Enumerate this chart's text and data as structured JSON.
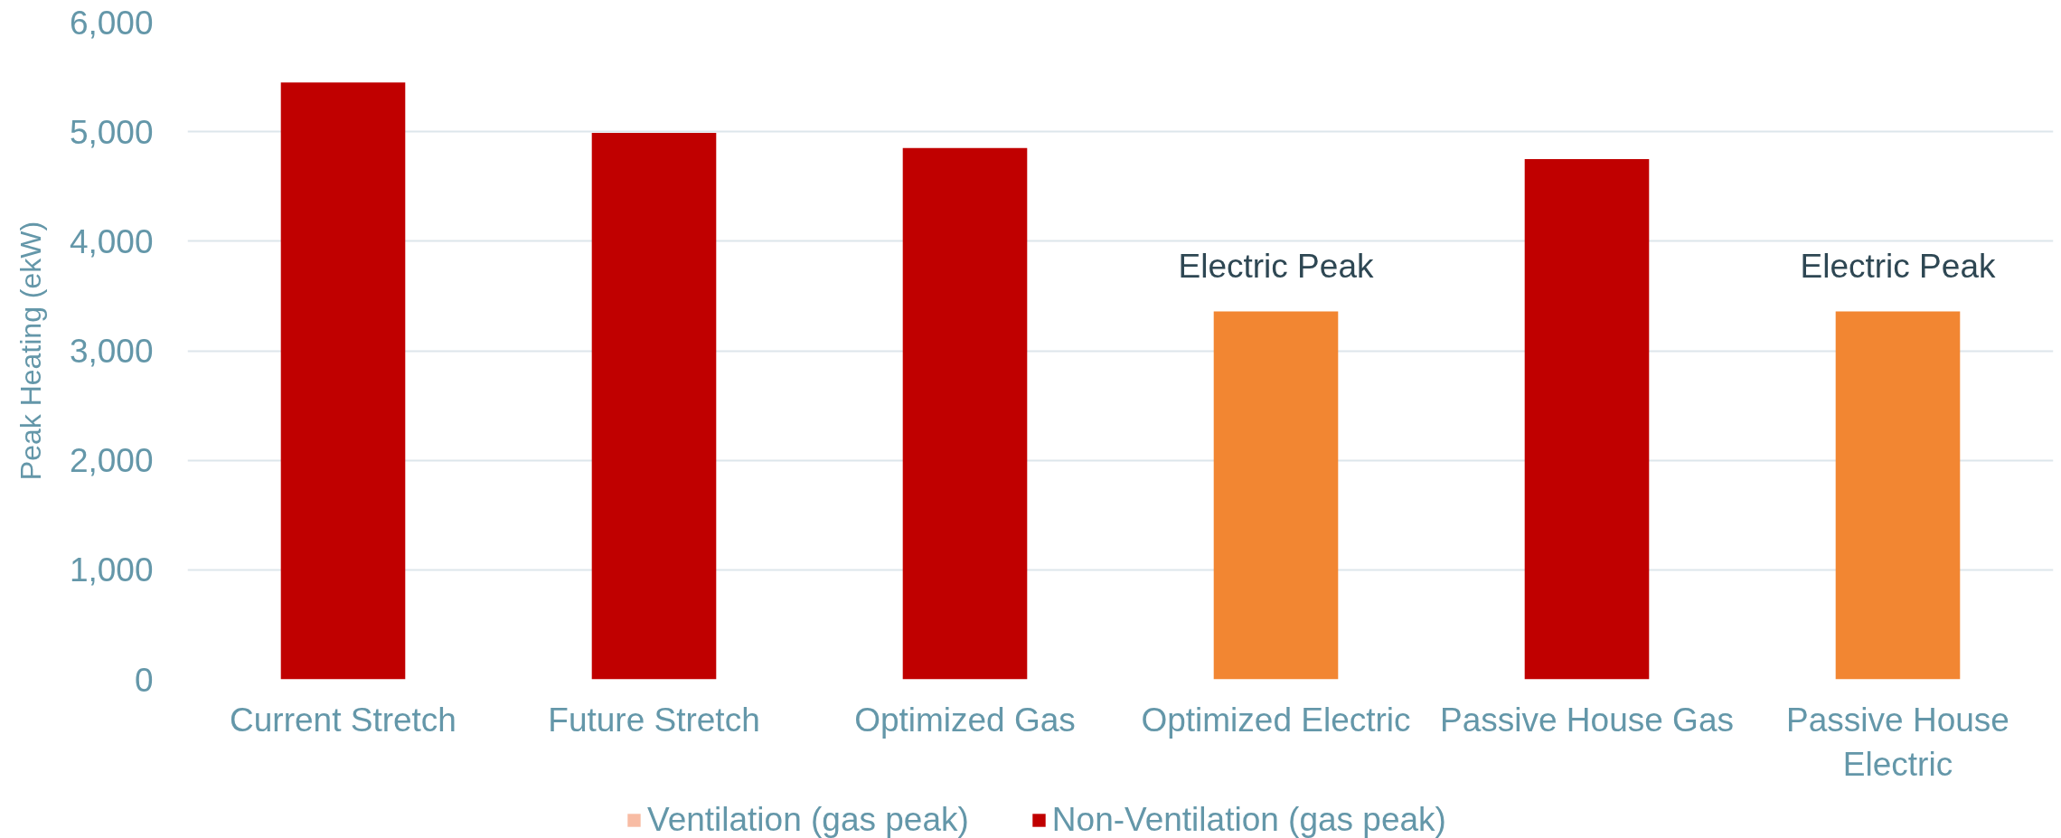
{
  "chart_data": {
    "type": "bar",
    "stacked": true,
    "categories": [
      "Current Stretch",
      "Future Stretch",
      "Optimized Gas",
      "Optimized Electric",
      "Passive House Gas",
      "Passive House Electric"
    ],
    "series": [
      {
        "name": "Ventilation (gas peak)",
        "color": "#f8bca4",
        "values": [
          null,
          null,
          null,
          null,
          null,
          null
        ]
      },
      {
        "name": "Non-Ventilation (gas peak)",
        "color": "#c00000",
        "values": [
          5450,
          4990,
          4850,
          null,
          4750,
          null
        ]
      },
      {
        "color": "#f28632",
        "values": [
          null,
          null,
          null,
          3360,
          null,
          3360
        ]
      }
    ],
    "ylabel": "Peak Heating (ekW)",
    "ylim": [
      0,
      6000
    ],
    "yticks": [
      0,
      {
        "value": 1000,
        "label": "1,000"
      },
      {
        "value": 2000,
        "label": "2,000"
      },
      {
        "value": 3000,
        "label": "3,000"
      },
      {
        "value": 4000,
        "label": "4,000"
      },
      {
        "value": 5000,
        "label": "5,000"
      },
      {
        "value": 6000,
        "label": "6,000"
      }
    ],
    "annotations": [
      {
        "text": "Electric Peak",
        "x": "Optimized Electric",
        "y": 3360
      },
      {
        "text": "Electric Peak",
        "x": "Passive House Electric",
        "y": 3360
      }
    ],
    "grid": "y",
    "legend": "bottom"
  }
}
